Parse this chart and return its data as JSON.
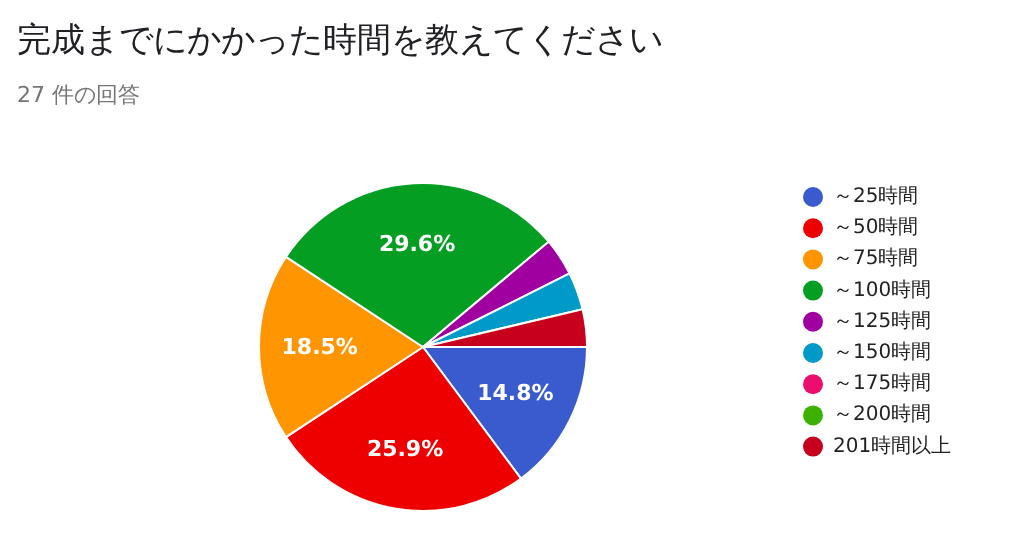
{
  "chart_data": {
    "type": "pie",
    "title": "完成までにかかった時間を教えてください",
    "subtitle": "27 件の回答",
    "categories": [
      "～25時間",
      "～50時間",
      "～75時間",
      "～100時間",
      "～125時間",
      "～150時間",
      "～175時間",
      "～200時間",
      "201時間以上"
    ],
    "values": [
      14.81,
      25.93,
      18.52,
      29.63,
      3.7,
      3.7,
      0,
      0,
      3.7
    ],
    "colors": [
      "#3a5bcd",
      "#ee0000",
      "#ff9500",
      "#039e22",
      "#a0009f",
      "#009ac9",
      "#ec0d6f",
      "#3cb100",
      "#c7001e"
    ],
    "value_labels": [
      "14.8%",
      "25.9%",
      "18.5%",
      "29.6%",
      null,
      null,
      null,
      null,
      null
    ],
    "legend": "right"
  }
}
